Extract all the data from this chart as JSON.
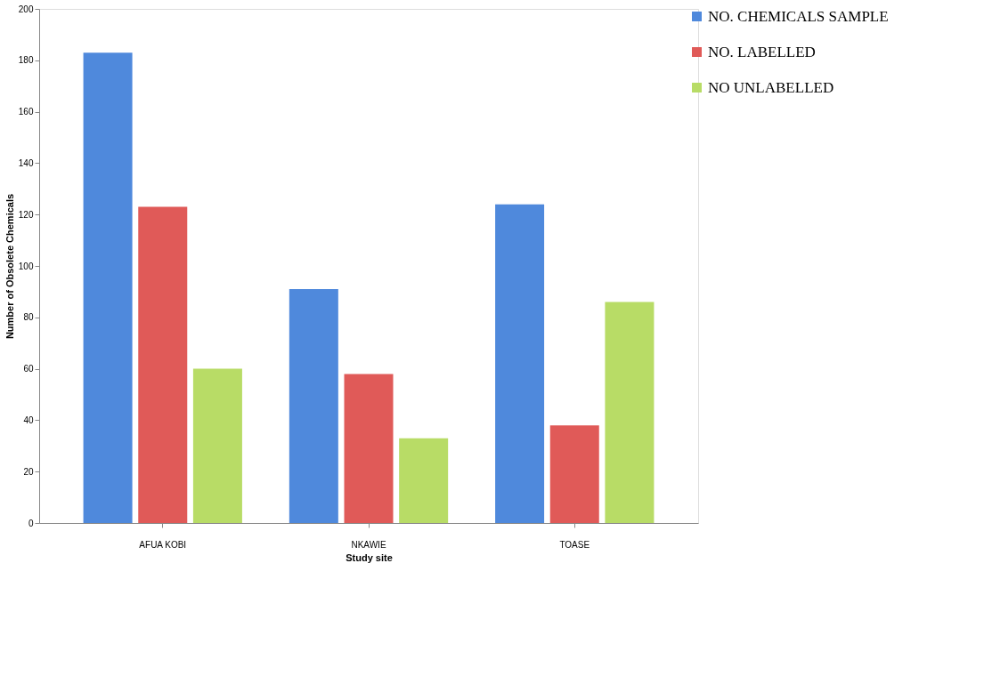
{
  "chart_data": {
    "type": "bar",
    "xlabel": "Study site",
    "ylabel": "Number of Obsolete Chemicals",
    "categories": [
      "AFUA KOBI",
      "NKAWIE",
      "TOASE"
    ],
    "series": [
      {
        "name": "NO. CHEMICALS SAMPLE",
        "color": "#4f89dc",
        "values": [
          183,
          91,
          124
        ]
      },
      {
        "name": "NO. LABELLED",
        "color": "#e05a58",
        "values": [
          123,
          58,
          38
        ]
      },
      {
        "name": "NO UNLABELLED",
        "color": "#b8dc66",
        "values": [
          60,
          33,
          86
        ]
      }
    ],
    "ylim": [
      0,
      200
    ],
    "yticks": [
      0,
      20,
      40,
      60,
      80,
      100,
      120,
      140,
      160,
      180,
      200
    ],
    "grid": false,
    "legend": "top right"
  }
}
